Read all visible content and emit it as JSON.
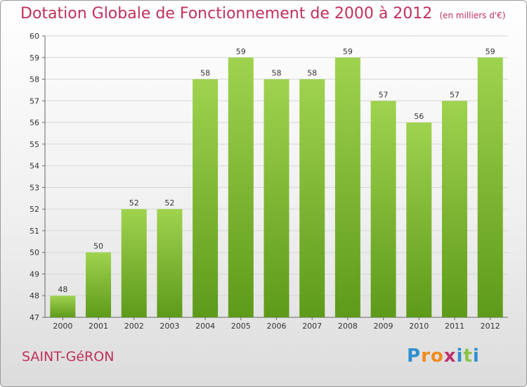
{
  "header": {
    "title": "Dotation Globale de Fonctionnement de 2000 à 2012",
    "subtitle": "(en milliers d'€)"
  },
  "commune": "SAINT-GéRON",
  "logo": {
    "text": "Proxiti",
    "letters": [
      {
        "ch": "P",
        "color": "#2f8fd0"
      },
      {
        "ch": "r",
        "color": "#f08a1c"
      },
      {
        "ch": "o",
        "color": "#f08a1c"
      },
      {
        "ch": "x",
        "color": "#c03070"
      },
      {
        "ch": "i",
        "color": "#2f8fd0"
      },
      {
        "ch": "t",
        "color": "#8bc34a"
      },
      {
        "ch": "i",
        "color": "#2f8fd0"
      }
    ]
  },
  "chart_data": {
    "type": "bar",
    "categories": [
      "2000",
      "2001",
      "2002",
      "2003",
      "2004",
      "2005",
      "2006",
      "2007",
      "2008",
      "2009",
      "2010",
      "2011",
      "2012"
    ],
    "values": [
      48,
      50,
      52,
      52,
      58,
      59,
      58,
      58,
      59,
      57,
      56,
      57,
      59
    ],
    "title": "Dotation Globale de Fonctionnement de 2000 à 2012",
    "xlabel": "",
    "ylabel": "",
    "ylim": [
      47,
      60
    ],
    "yticks": [
      47,
      48,
      49,
      50,
      51,
      52,
      53,
      54,
      55,
      56,
      57,
      58,
      59,
      60
    ],
    "grid": true,
    "bar_color_top": "#9fd34f",
    "bar_color_bottom": "#5e9a1a"
  }
}
